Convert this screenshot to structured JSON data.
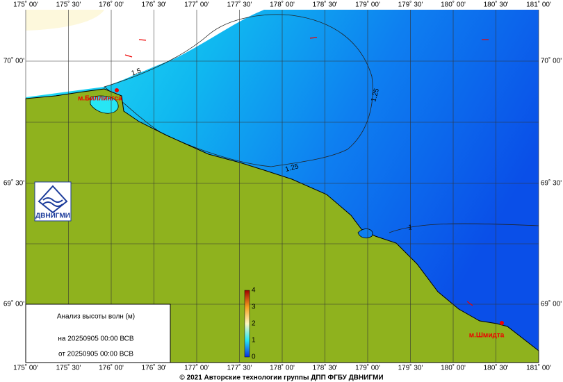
{
  "map": {
    "lon_labels": [
      "175˚ 00'",
      "175˚ 30'",
      "176˚ 00'",
      "176˚ 30'",
      "177˚ 00'",
      "177˚ 30'",
      "178˚ 00'",
      "178˚ 30'",
      "179˚ 00'",
      "179˚ 30'",
      "180˚ 00'",
      "180˚ 30'",
      "181˚ 00'"
    ],
    "lat_labels": [
      "70˚ 00'",
      "69˚ 30'",
      "69˚ 00'"
    ],
    "places": [
      "м.Биллингса",
      "м.Шмидта"
    ],
    "contours": [
      "1.5",
      "1.25",
      "1.25",
      "1"
    ]
  },
  "legend_box": {
    "title": "Анализ высоты волн (м)",
    "time": "на 20250905 00:00 ВСВ",
    "issued": "от 20250905 00:00 ВСВ"
  },
  "colorbar": {
    "labels": [
      "4",
      "3",
      "2",
      "1",
      "0"
    ]
  },
  "logo": "ДВНИГМИ",
  "footer": "© 2021 Авторские технологии группы ДПП ФГБУ ДВНИГМИ"
}
